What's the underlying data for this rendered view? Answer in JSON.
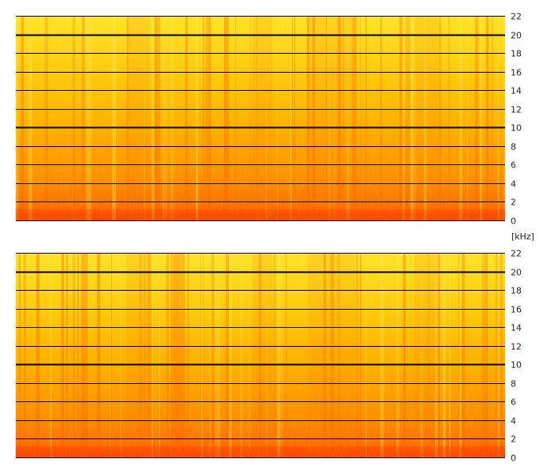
{
  "unit_label": "[kHz]",
  "colors": {
    "low_energy": "#fff23a",
    "mid_energy": "#ffb400",
    "high_energy": "#ff5a00",
    "gridline": "#000000",
    "background": "#ffffff"
  },
  "chart_data": [
    {
      "type": "heatmap",
      "name": "spectrogram-top",
      "ylabel": "[kHz]",
      "ylim": [
        0,
        22
      ],
      "y_ticks": [
        "0",
        "2",
        "4",
        "6",
        "8",
        "10",
        "12",
        "14",
        "16",
        "18",
        "20",
        "22"
      ],
      "emphasized_gridlines": [
        "10",
        "20"
      ],
      "axis_side": "right",
      "grid": true,
      "colormap": [
        "#fff23a",
        "#ffb400",
        "#ff5a00"
      ]
    },
    {
      "type": "heatmap",
      "name": "spectrogram-bottom",
      "ylabel": "[kHz]",
      "ylim": [
        0,
        22
      ],
      "y_ticks": [
        "0",
        "2",
        "4",
        "6",
        "8",
        "10",
        "12",
        "14",
        "16",
        "18",
        "20",
        "22"
      ],
      "emphasized_gridlines": [
        "10",
        "20"
      ],
      "axis_side": "right",
      "grid": true,
      "colormap": [
        "#fff23a",
        "#ffb400",
        "#ff5a00"
      ]
    }
  ]
}
